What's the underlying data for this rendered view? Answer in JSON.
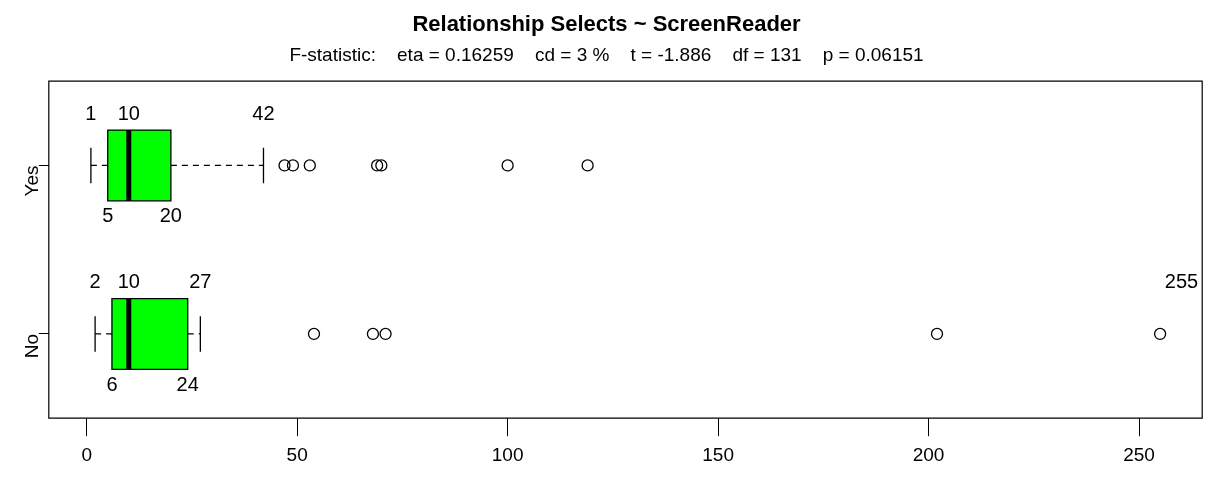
{
  "chart_data": {
    "type": "box",
    "orientation": "horizontal",
    "title": "Relationship Selects ~ ScreenReader",
    "subtitle": "F-statistic:    eta = 0.16259    cd = 3 %    t = -1.886    df = 131    p = 0.06151",
    "categories": [
      "Yes",
      "No"
    ],
    "boxes": [
      {
        "low": 1,
        "q1": 5,
        "median": 10,
        "q3": 20,
        "high": 42,
        "outliers": [
          47,
          49,
          53,
          69,
          70,
          100,
          119
        ]
      },
      {
        "low": 2,
        "q1": 6,
        "median": 10,
        "q3": 24,
        "high": 27,
        "outliers": [
          54,
          68,
          71,
          202,
          255
        ]
      }
    ],
    "color": "#00ff00",
    "xlim": [
      -9,
      265
    ],
    "xticks": [
      0,
      50,
      100,
      150,
      200,
      250
    ],
    "grid": false,
    "legend": false,
    "annotations": [
      {
        "text": "1",
        "x": 1,
        "y": "Yes"
      },
      {
        "text": "10",
        "x": 10,
        "y": "Yes"
      },
      {
        "text": "42",
        "x": 42,
        "y": "Yes"
      },
      {
        "text": "5",
        "x": 5,
        "y": "Yes"
      },
      {
        "text": "20",
        "x": 20,
        "y": "Yes"
      },
      {
        "text": "2",
        "x": 2,
        "y": "No"
      },
      {
        "text": "10",
        "x": 10,
        "y": "No"
      },
      {
        "text": "27",
        "x": 27,
        "y": "No"
      },
      {
        "text": "6",
        "x": 6,
        "y": "No"
      },
      {
        "text": "24",
        "x": 24,
        "y": "No"
      },
      "255"
    ]
  }
}
